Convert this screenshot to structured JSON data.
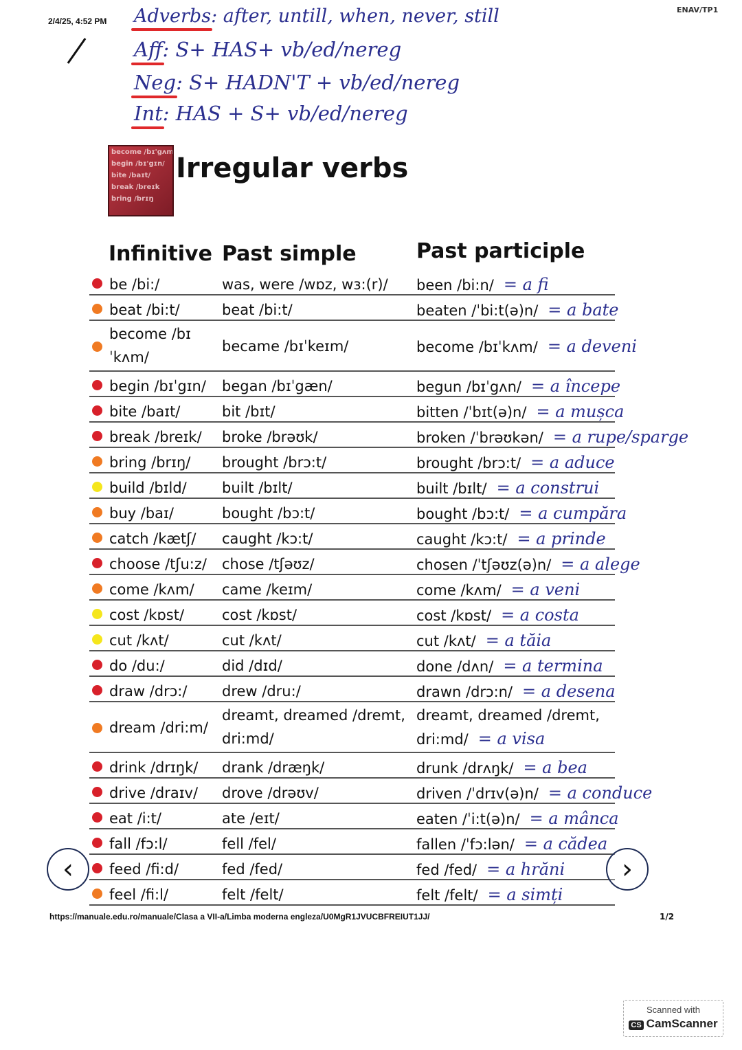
{
  "header": {
    "timestamp": "2/4/25, 4:52 PM",
    "code": "ENAV/TP1"
  },
  "notes": [
    {
      "key": "Adverbs",
      "text": ": after, untill, when, never, still"
    },
    {
      "key": "Aff",
      "text": ": S+ HAS+ vb/ed/nereg"
    },
    {
      "key": "Neg",
      "text": ": S+ HADN'T + vb/ed/nereg"
    },
    {
      "key": "Int",
      "text": ": HAS + S+ vb/ed/nereg"
    }
  ],
  "logo": {
    "words": [
      "become /bɪ'gʌm",
      "begin /bɪ'gɪn/",
      "bite /baɪt/",
      "break /breɪk",
      "bring /brɪŋ"
    ]
  },
  "title": "Irregular verbs",
  "columns": {
    "infinitive": "Infinitive",
    "past": "Past simple",
    "participle": "Past participle"
  },
  "colors": {
    "red": "#d8202a",
    "orange": "#f07a22",
    "yellow": "#f5e61c",
    "ink": "#2b2f8f",
    "underline": "#e0282a"
  },
  "rows": [
    {
      "inf": "be /bi:/",
      "past": "was, were /wɒz, wɜ:(r)/",
      "pp": "been /bi:n/",
      "tr": "= a fi",
      "dot": "red"
    },
    {
      "inf": "beat /bi:t/",
      "past": "beat /bi:t/",
      "pp": "beaten /ˈbi:t(ə)n/",
      "tr": "= a bate",
      "dot": "orange"
    },
    {
      "inf": "become /bɪ",
      "inf2": "ˈkʌm/",
      "past": "became /bɪˈkeɪm/",
      "pp": "become /bɪˈkʌm/",
      "tr": "= a deveni",
      "dot": "orange",
      "tall": true
    },
    {
      "inf": "begin /bɪˈgɪn/",
      "past": "began /bɪˈgæn/",
      "pp": "begun /bɪˈgʌn/",
      "tr": "= a începe",
      "dot": "red"
    },
    {
      "inf": "bite /baɪt/",
      "past": "bit /bɪt/",
      "pp": "bitten /ˈbɪt(ə)n/",
      "tr": "= a mușca",
      "dot": "red"
    },
    {
      "inf": "break /breɪk/",
      "past": "broke /brəʊk/",
      "pp": "broken /ˈbrəʊkən/",
      "tr": "= a rupe/sparge",
      "dot": "red"
    },
    {
      "inf": "bring /brɪŋ/",
      "past": "brought /brɔ:t/",
      "pp": "brought /brɔ:t/",
      "tr": "= a aduce",
      "dot": "orange"
    },
    {
      "inf": "build /bɪld/",
      "past": "built /bɪlt/",
      "pp": "built /bɪlt/",
      "tr": "= a construi",
      "dot": "yellow"
    },
    {
      "inf": "buy /baɪ/",
      "past": "bought /bɔ:t/",
      "pp": "bought /bɔ:t/",
      "tr": "= a cumpăra",
      "dot": "orange"
    },
    {
      "inf": "catch /kætʃ/",
      "past": "caught /kɔ:t/",
      "pp": "caught /kɔ:t/",
      "tr": "= a prinde",
      "dot": "orange"
    },
    {
      "inf": "choose /tʃu:z/",
      "past": "chose /tʃəʊz/",
      "pp": "chosen /ˈtʃəʊz(ə)n/",
      "tr": "= a alege",
      "dot": "red"
    },
    {
      "inf": "come /kʌm/",
      "past": "came /keɪm/",
      "pp": "come /kʌm/",
      "tr": "= a veni",
      "dot": "orange"
    },
    {
      "inf": "cost /kɒst/",
      "past": "cost /kɒst/",
      "pp": "cost /kɒst/",
      "tr": "= a costa",
      "dot": "yellow"
    },
    {
      "inf": "cut /kʌt/",
      "past": "cut /kʌt/",
      "pp": "cut /kʌt/",
      "tr": "= a tăia",
      "dot": "yellow"
    },
    {
      "inf": "do /du:/",
      "past": "did /dɪd/",
      "pp": "done /dʌn/",
      "tr": "= a termina",
      "dot": "red"
    },
    {
      "inf": "draw /drɔ:/",
      "past": "drew /dru:/",
      "pp": "drawn /drɔ:n/",
      "tr": "= a desena",
      "dot": "red"
    },
    {
      "inf": "dream /dri:m/",
      "past": "dreamt, dreamed /dremt,",
      "past2": "dri:md/",
      "pp": "dreamt, dreamed /dremt,",
      "pp2": "dri:md/",
      "tr": "= a visa",
      "dot": "orange",
      "tall": true
    },
    {
      "inf": "drink /drɪŋk/",
      "past": "drank /dræŋk/",
      "pp": "drunk /drʌŋk/",
      "tr": "= a bea",
      "dot": "red"
    },
    {
      "inf": "drive /draɪv/",
      "past": "drove /drəʊv/",
      "pp": "driven /ˈdrɪv(ə)n/",
      "tr": "= a conduce",
      "dot": "red"
    },
    {
      "inf": "eat /i:t/",
      "past": "ate /eɪt/",
      "pp": "eaten /ˈi:t(ə)n/",
      "tr": "= a mânca",
      "dot": "red"
    },
    {
      "inf": "fall /fɔ:l/",
      "past": "fell /fel/",
      "pp": "fallen /ˈfɔ:lən/",
      "tr": "= a cădea",
      "dot": "red"
    },
    {
      "inf": "feed /fi:d/",
      "past": "fed /fed/",
      "pp": "fed /fed/",
      "tr": "= a hrăni",
      "dot": "red"
    },
    {
      "inf": "feel /fi:l/",
      "past": "felt /felt/",
      "pp": "felt /felt/",
      "tr": "= a simți",
      "dot": "orange"
    }
  ],
  "footer": {
    "url": "https://manuale.edu.ro/manuale/Clasa a VII-a/Limba moderna engleza/U0MgR1JVUCBFREIUT1JJ/",
    "page": "1/2"
  },
  "nav": {
    "prev": "‹",
    "next": "›"
  },
  "scanner": {
    "line1": "Scanned with",
    "badge": "CS",
    "line2": "CamScanner"
  }
}
